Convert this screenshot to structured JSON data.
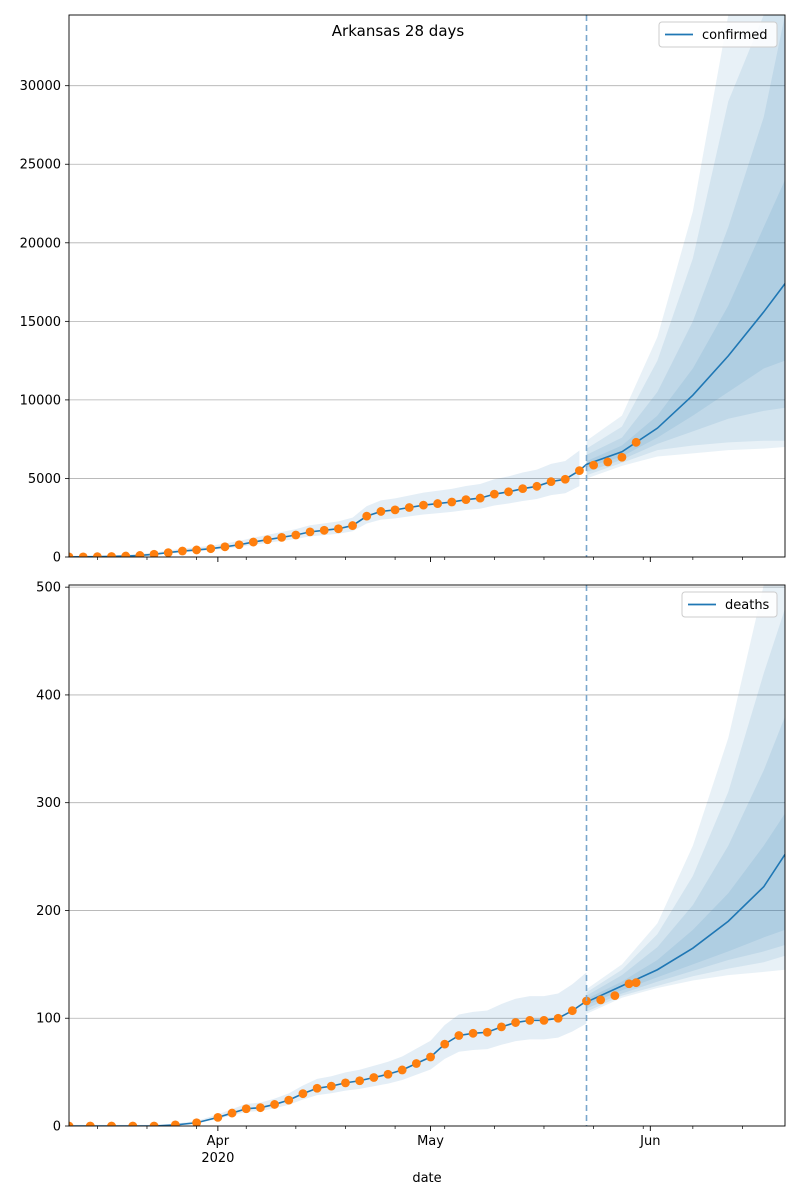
{
  "figure": {
    "title": "Arkansas 28 days",
    "xlabel": "date"
  },
  "chart_data": [
    {
      "type": "line",
      "panel": "top",
      "series_name": "confirmed",
      "x_range": [
        "2020-03-11",
        "2020-06-20"
      ],
      "ylim": [
        0,
        34500
      ],
      "y_ticks": [
        0,
        5000,
        10000,
        15000,
        20000,
        25000,
        30000
      ],
      "grid": "y",
      "legend": "top-right",
      "forecast_start": "2020-05-23",
      "x_ticks": [
        {
          "date": "2020-04-01",
          "label": "Apr",
          "sublabel": "2020"
        },
        {
          "date": "2020-05-01",
          "label": "May",
          "sublabel": ""
        },
        {
          "date": "2020-06-01",
          "label": "Jun",
          "sublabel": ""
        }
      ],
      "observed": {
        "x": [
          "2020-03-11",
          "2020-03-13",
          "2020-03-15",
          "2020-03-17",
          "2020-03-19",
          "2020-03-21",
          "2020-03-23",
          "2020-03-25",
          "2020-03-27",
          "2020-03-29",
          "2020-03-31",
          "2020-04-02",
          "2020-04-04",
          "2020-04-06",
          "2020-04-08",
          "2020-04-10",
          "2020-04-12",
          "2020-04-14",
          "2020-04-16",
          "2020-04-18",
          "2020-04-20",
          "2020-04-22",
          "2020-04-24",
          "2020-04-26",
          "2020-04-28",
          "2020-04-30",
          "2020-05-02",
          "2020-05-04",
          "2020-05-06",
          "2020-05-08",
          "2020-05-10",
          "2020-05-12",
          "2020-05-14",
          "2020-05-16",
          "2020-05-18",
          "2020-05-20",
          "2020-05-22",
          "2020-05-24",
          "2020-05-26",
          "2020-05-28",
          "2020-05-30"
        ],
        "y": [
          6,
          10,
          20,
          33,
          60,
          100,
          174,
          280,
          380,
          450,
          530,
          650,
          780,
          950,
          1100,
          1250,
          1400,
          1600,
          1700,
          1800,
          2000,
          2600,
          2900,
          3000,
          3150,
          3300,
          3400,
          3500,
          3650,
          3750,
          4000,
          4150,
          4350,
          4500,
          4800,
          4950,
          5500,
          5850,
          6050,
          6350,
          7300
        ]
      },
      "forecast": {
        "x": [
          "2020-05-23",
          "2020-05-28",
          "2020-06-02",
          "2020-06-07",
          "2020-06-12",
          "2020-06-17",
          "2020-06-20"
        ],
        "median": [
          5900,
          6700,
          8200,
          10300,
          12800,
          15600,
          17400
        ],
        "band_50": [
          [
            5700,
            6100
          ],
          [
            6400,
            7100
          ],
          [
            7600,
            9000
          ],
          [
            9000,
            12000
          ],
          [
            10500,
            16000
          ],
          [
            12000,
            21000
          ],
          [
            12500,
            24000
          ]
        ],
        "band_80": [
          [
            5400,
            6500
          ],
          [
            6200,
            7600
          ],
          [
            7200,
            10500
          ],
          [
            8000,
            15000
          ],
          [
            8800,
            21000
          ],
          [
            9300,
            28000
          ],
          [
            9500,
            34500
          ]
        ],
        "band_95": [
          [
            5200,
            6900
          ],
          [
            6000,
            8300
          ],
          [
            6800,
            12500
          ],
          [
            7100,
            19000
          ],
          [
            7300,
            29000
          ],
          [
            7400,
            34500
          ],
          [
            7400,
            34500
          ]
        ],
        "band_99": [
          [
            5000,
            7400
          ],
          [
            5800,
            9000
          ],
          [
            6400,
            14000
          ],
          [
            6600,
            22000
          ],
          [
            6800,
            34500
          ],
          [
            6900,
            34500
          ],
          [
            7000,
            34500
          ]
        ]
      }
    },
    {
      "type": "line",
      "panel": "bottom",
      "series_name": "deaths",
      "x_range": [
        "2020-03-11",
        "2020-06-20"
      ],
      "ylim": [
        0,
        502
      ],
      "y_ticks": [
        0,
        100,
        200,
        300,
        400,
        500
      ],
      "grid": "y",
      "legend": "top-right",
      "forecast_start": "2020-05-23",
      "x_ticks": [
        {
          "date": "2020-04-01",
          "label": "Apr",
          "sublabel": "2020"
        },
        {
          "date": "2020-05-01",
          "label": "May",
          "sublabel": ""
        },
        {
          "date": "2020-06-01",
          "label": "Jun",
          "sublabel": ""
        }
      ],
      "observed": {
        "x": [
          "2020-03-11",
          "2020-03-14",
          "2020-03-17",
          "2020-03-20",
          "2020-03-23",
          "2020-03-26",
          "2020-03-29",
          "2020-04-01",
          "2020-04-03",
          "2020-04-05",
          "2020-04-07",
          "2020-04-09",
          "2020-04-11",
          "2020-04-13",
          "2020-04-15",
          "2020-04-17",
          "2020-04-19",
          "2020-04-21",
          "2020-04-23",
          "2020-04-25",
          "2020-04-27",
          "2020-04-29",
          "2020-05-01",
          "2020-05-03",
          "2020-05-05",
          "2020-05-07",
          "2020-05-09",
          "2020-05-11",
          "2020-05-13",
          "2020-05-15",
          "2020-05-17",
          "2020-05-19",
          "2020-05-21",
          "2020-05-23",
          "2020-05-25",
          "2020-05-27",
          "2020-05-29",
          "2020-05-30"
        ],
        "y": [
          0,
          0,
          0,
          0,
          0,
          1,
          3,
          8,
          12,
          16,
          17,
          20,
          24,
          30,
          35,
          37,
          40,
          42,
          45,
          48,
          52,
          58,
          64,
          76,
          84,
          86,
          87,
          92,
          96,
          98,
          98,
          100,
          107,
          116,
          117,
          121,
          132,
          133
        ]
      },
      "forecast": {
        "x": [
          "2020-05-23",
          "2020-05-28",
          "2020-06-02",
          "2020-06-07",
          "2020-06-12",
          "2020-06-17",
          "2020-06-20"
        ],
        "median": [
          115,
          130,
          145,
          165,
          190,
          222,
          252
        ],
        "band_50": [
          [
            112,
            118
          ],
          [
            126,
            134
          ],
          [
            138,
            154
          ],
          [
            150,
            182
          ],
          [
            162,
            216
          ],
          [
            175,
            260
          ],
          [
            182,
            290
          ]
        ],
        "band_80": [
          [
            109,
            121
          ],
          [
            123,
            140
          ],
          [
            134,
            166
          ],
          [
            144,
            205
          ],
          [
            154,
            260
          ],
          [
            162,
            330
          ],
          [
            168,
            380
          ]
        ],
        "band_95": [
          [
            106,
            124
          ],
          [
            121,
            145
          ],
          [
            130,
            178
          ],
          [
            139,
            232
          ],
          [
            146,
            310
          ],
          [
            152,
            420
          ],
          [
            158,
            480
          ]
        ],
        "band_99": [
          [
            104,
            127
          ],
          [
            119,
            150
          ],
          [
            128,
            188
          ],
          [
            135,
            260
          ],
          [
            140,
            360
          ],
          [
            143,
            502
          ],
          [
            145,
            502
          ]
        ]
      }
    }
  ],
  "colors": {
    "line": "#1f77b4",
    "observed": "#ff7f0e",
    "band": "#1f77b4",
    "grid": "#b0b0b0",
    "vline": "#7aa7cc"
  }
}
